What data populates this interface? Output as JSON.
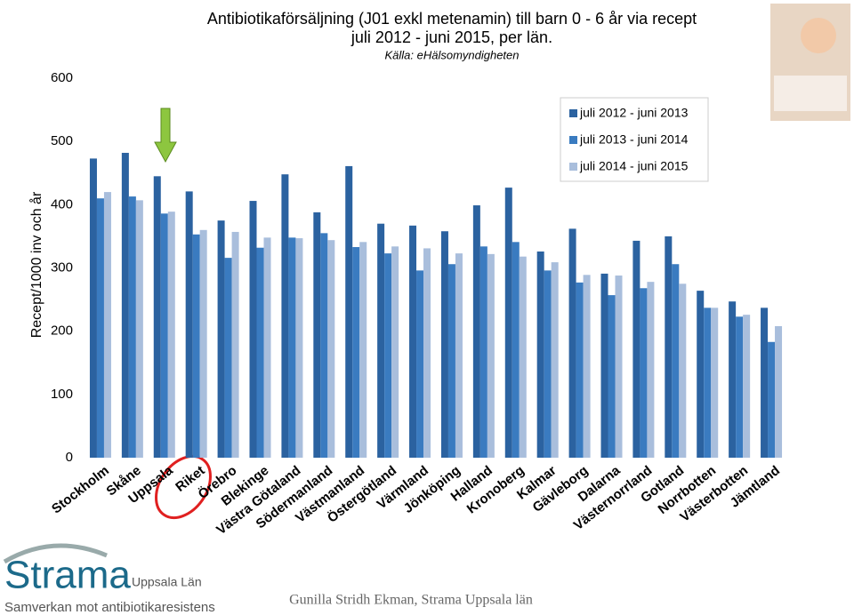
{
  "chart_data": {
    "type": "bar",
    "title": "Antibiotikaförsäljning (J01 exkl metenamin) till barn 0 - 6 år via recept",
    "subtitle": "juli 2012 - juni 2015, per län.",
    "source": "Källa: eHälsomyndigheten",
    "y_label": "Recept/1000 inv och år",
    "categories": [
      "Stockholm",
      "Skåne",
      "Uppsala",
      "Riket",
      "Örebro",
      "Blekinge",
      "Västra Götaland",
      "Södermanland",
      "Västmanland",
      "Östergötland",
      "Värmland",
      "Jönköping",
      "Halland",
      "Kronoberg",
      "Kalmar",
      "Gävleborg",
      "Dalarna",
      "Västernorrland",
      "Gotland",
      "Norrbotten",
      "Västerbotten",
      "Jämtland"
    ],
    "series": [
      {
        "name": "juli 2012 - juni 2013",
        "color": "#2b62a0",
        "values": [
          473,
          482,
          445,
          421,
          375,
          406,
          448,
          388,
          461,
          370,
          367,
          358,
          399,
          427,
          326,
          362,
          291,
          343,
          350,
          264,
          247,
          237
        ]
      },
      {
        "name": "juli 2013 - juni 2014",
        "color": "#3a7bc0",
        "values": [
          410,
          413,
          386,
          353,
          316,
          332,
          348,
          355,
          333,
          323,
          296,
          306,
          334,
          341,
          296,
          277,
          257,
          268,
          306,
          237,
          223,
          183
        ]
      },
      {
        "name": "juli 2014 - juni 2015",
        "color": "#a9bedc",
        "values": [
          420,
          407,
          389,
          360,
          357,
          348,
          347,
          344,
          341,
          334,
          331,
          323,
          322,
          318,
          309,
          289,
          288,
          278,
          275,
          237,
          226,
          208
        ]
      }
    ],
    "ylim": [
      0,
      600
    ],
    "yticks": [
      0,
      100,
      200,
      300,
      400,
      500,
      600
    ],
    "grid": false,
    "legend": "top-right"
  },
  "logo": {
    "name": "Strama",
    "region": "Uppsala Län",
    "tagline": "Samverkan mot antibiotikaresistens"
  },
  "footer": "Gunilla Stridh Ekman, Strama Uppsala län"
}
